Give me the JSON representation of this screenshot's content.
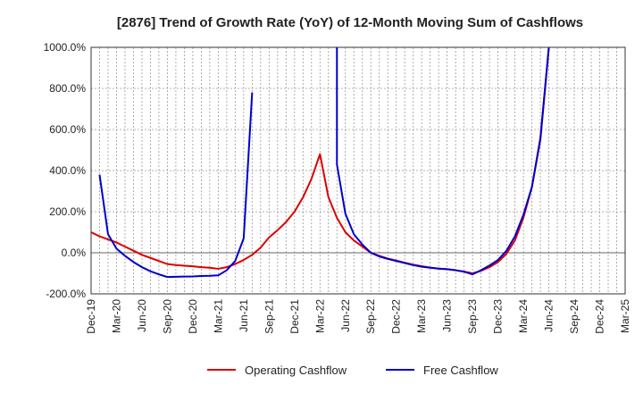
{
  "chart_data": {
    "type": "line",
    "title": "[2876]  Trend of Growth Rate (YoY) of 12-Month Moving Sum of Cashflows",
    "xlabel": "",
    "ylabel": "",
    "ylim": [
      -200,
      1000
    ],
    "y_ticks": [
      -200,
      0,
      200,
      400,
      600,
      800,
      1000
    ],
    "y_tick_labels": [
      "-200.0%",
      "0.0%",
      "200.0%",
      "400.0%",
      "600.0%",
      "800.0%",
      "1000.0%"
    ],
    "x_ticks": [
      "Dec-19",
      "Mar-20",
      "Jun-20",
      "Sep-20",
      "Dec-20",
      "Mar-21",
      "Jun-21",
      "Sep-21",
      "Dec-21",
      "Mar-22",
      "Jun-22",
      "Sep-22",
      "Dec-22",
      "Mar-23",
      "Jun-23",
      "Sep-23",
      "Dec-23",
      "Mar-24",
      "Jun-24",
      "Sep-24",
      "Dec-24",
      "Mar-25"
    ],
    "grid": true,
    "legend_position": "bottom",
    "series": [
      {
        "name": "Operating Cashflow",
        "color": "#dd0000",
        "points": [
          [
            "Dec-19",
            100
          ],
          [
            "Jan-20",
            80
          ],
          [
            "Feb-20",
            65
          ],
          [
            "Mar-20",
            50
          ],
          [
            "Apr-20",
            30
          ],
          [
            "May-20",
            10
          ],
          [
            "Jun-20",
            -10
          ],
          [
            "Jul-20",
            -25
          ],
          [
            "Aug-20",
            -40
          ],
          [
            "Sep-20",
            -55
          ],
          [
            "Oct-20",
            -60
          ],
          [
            "Nov-20",
            -63
          ],
          [
            "Dec-20",
            -66
          ],
          [
            "Jan-21",
            -70
          ],
          [
            "Feb-21",
            -73
          ],
          [
            "Mar-21",
            -78
          ],
          [
            "Apr-21",
            -70
          ],
          [
            "May-21",
            -55
          ],
          [
            "Jun-21",
            -35
          ],
          [
            "Jul-21",
            -10
          ],
          [
            "Aug-21",
            25
          ],
          [
            "Sep-21",
            75
          ],
          [
            "Oct-21",
            110
          ],
          [
            "Nov-21",
            150
          ],
          [
            "Dec-21",
            200
          ],
          [
            "Jan-22",
            270
          ],
          [
            "Feb-22",
            360
          ],
          [
            "Mar-22",
            480
          ],
          [
            "Apr-22",
            270
          ],
          [
            "May-22",
            170
          ],
          [
            "Jun-22",
            100
          ],
          [
            "Jul-22",
            60
          ],
          [
            "Aug-22",
            30
          ],
          [
            "Sep-22",
            0
          ],
          [
            "Oct-22",
            -15
          ],
          [
            "Nov-22",
            -28
          ],
          [
            "Dec-22",
            -38
          ],
          [
            "Jan-23",
            -48
          ],
          [
            "Feb-23",
            -58
          ],
          [
            "Mar-23",
            -65
          ],
          [
            "Apr-23",
            -72
          ],
          [
            "May-23",
            -77
          ],
          [
            "Jun-23",
            -80
          ],
          [
            "Jul-23",
            -85
          ],
          [
            "Aug-23",
            -92
          ],
          [
            "Sep-23",
            -100
          ],
          [
            "Oct-23",
            -88
          ],
          [
            "Nov-23",
            -70
          ],
          [
            "Dec-23",
            -45
          ],
          [
            "Jan-24",
            -5
          ],
          [
            "Feb-24",
            60
          ],
          [
            "Mar-24",
            170
          ],
          [
            "Apr-24",
            320
          ],
          [
            "May-24",
            560
          ],
          [
            "Jun-24",
            1000
          ]
        ]
      },
      {
        "name": "Free Cashflow",
        "color": "#0000cc",
        "segments": [
          [
            [
              "Jan-20",
              380
            ],
            [
              "Feb-20",
              90
            ],
            [
              "Mar-20",
              20
            ],
            [
              "Apr-20",
              -15
            ],
            [
              "May-20",
              -45
            ],
            [
              "Jun-20",
              -70
            ],
            [
              "Jul-20",
              -90
            ],
            [
              "Aug-20",
              -105
            ],
            [
              "Sep-20",
              -118
            ],
            [
              "Oct-20",
              -117
            ],
            [
              "Nov-20",
              -116
            ],
            [
              "Dec-20",
              -115
            ],
            [
              "Jan-21",
              -113
            ],
            [
              "Feb-21",
              -112
            ],
            [
              "Mar-21",
              -110
            ],
            [
              "Apr-21",
              -85
            ],
            [
              "May-21",
              -40
            ],
            [
              "Jun-21",
              70
            ],
            [
              "Jul-21",
              780
            ]
          ],
          [
            [
              "May-22",
              1000
            ],
            [
              "May-22",
              430
            ],
            [
              "Jun-22",
              190
            ],
            [
              "Jul-22",
              90
            ],
            [
              "Aug-22",
              40
            ],
            [
              "Sep-22",
              0
            ],
            [
              "Oct-22",
              -18
            ],
            [
              "Nov-22",
              -30
            ],
            [
              "Dec-22",
              -40
            ],
            [
              "Jan-23",
              -50
            ],
            [
              "Feb-23",
              -60
            ],
            [
              "Mar-23",
              -68
            ],
            [
              "Apr-23",
              -73
            ],
            [
              "May-23",
              -77
            ],
            [
              "Jun-23",
              -80
            ],
            [
              "Jul-23",
              -85
            ],
            [
              "Aug-23",
              -92
            ],
            [
              "Sep-23",
              -105
            ],
            [
              "Oct-23",
              -85
            ],
            [
              "Nov-23",
              -62
            ],
            [
              "Dec-23",
              -35
            ],
            [
              "Jan-24",
              10
            ],
            [
              "Feb-24",
              80
            ],
            [
              "Mar-24",
              185
            ],
            [
              "Apr-24",
              320
            ],
            [
              "May-24",
              550
            ],
            [
              "Jun-24",
              1000
            ]
          ]
        ]
      }
    ]
  }
}
